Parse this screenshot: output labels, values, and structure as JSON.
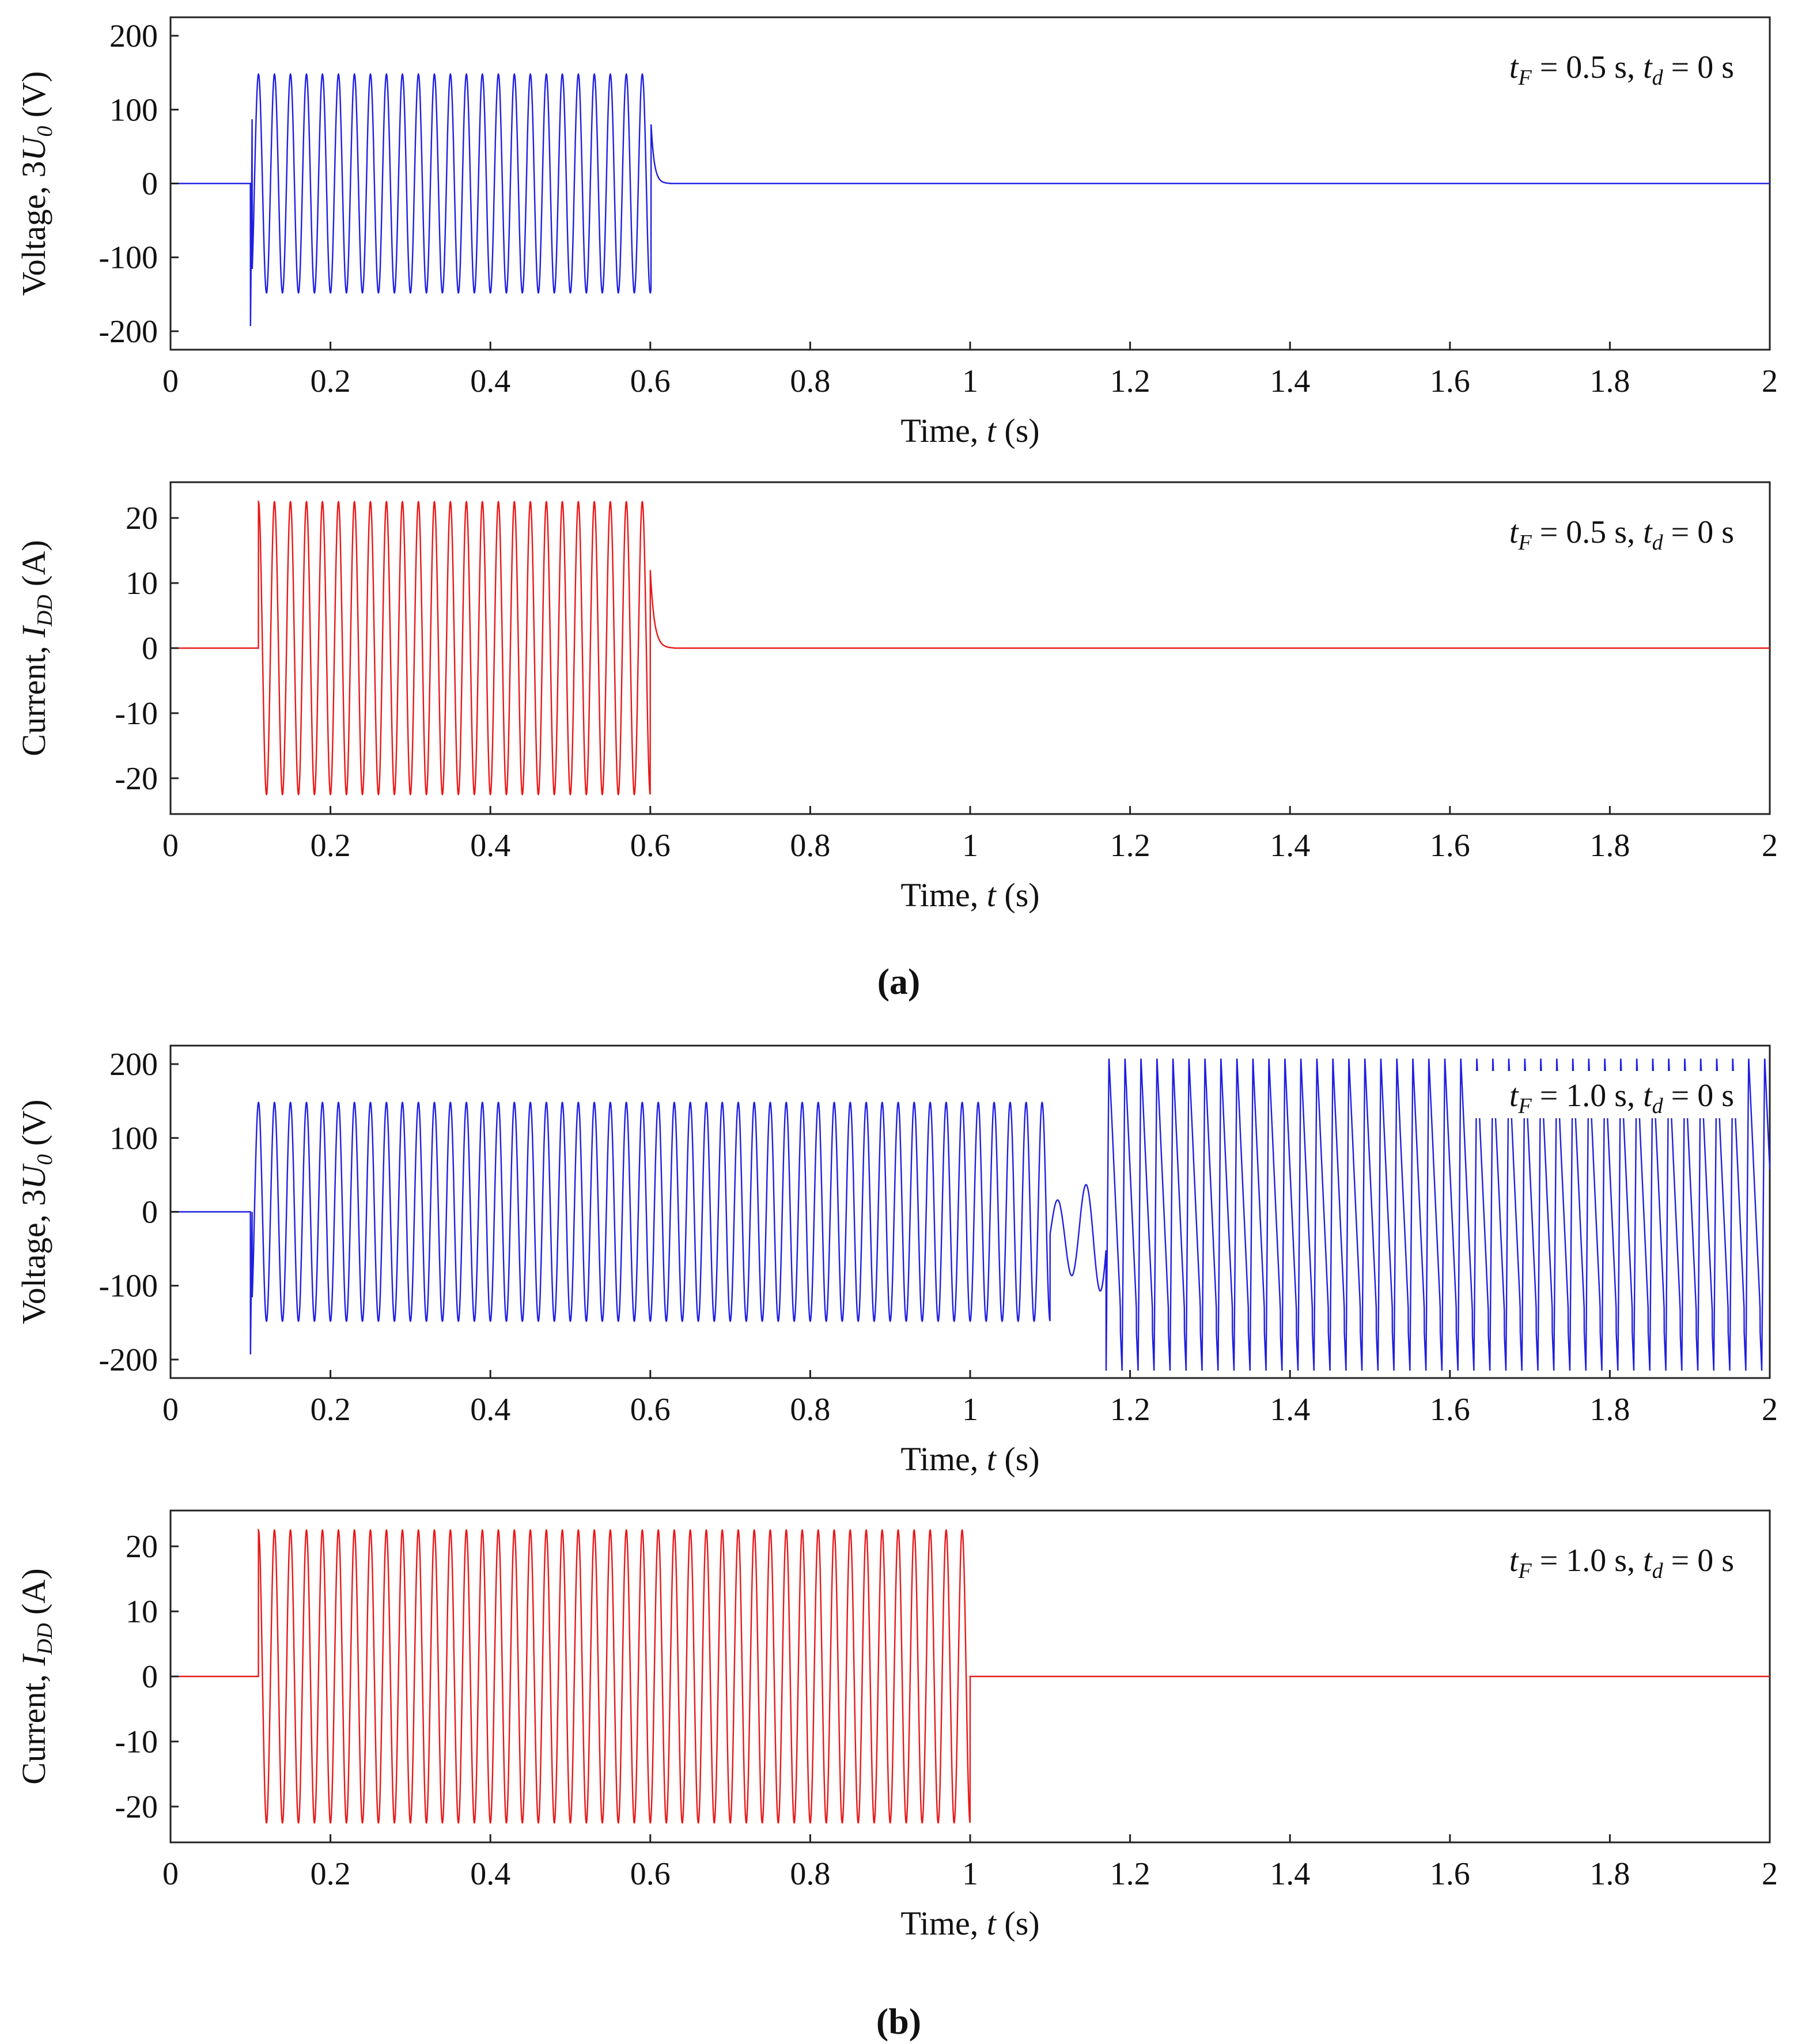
{
  "panel_labels": [
    "(a)",
    "(b)"
  ],
  "chart_data": [
    {
      "type": "line",
      "panel": "(a)",
      "color": "#1f1fe0",
      "ylabel": {
        "pre": "Voltage, 3",
        "sym": "U",
        "sub": "0",
        "post": " (V)"
      },
      "xlabel": {
        "pre": "Time, ",
        "sym": "t",
        "post": " (s)"
      },
      "xlim": [
        0,
        2
      ],
      "ylim": [
        -225,
        225
      ],
      "xticks": [
        0,
        0.2,
        0.4,
        0.6,
        0.8,
        1,
        1.2,
        1.4,
        1.6,
        1.8,
        2
      ],
      "xtick_labels": [
        "0",
        "0.2",
        "0.4",
        "0.6",
        "0.8",
        "1",
        "1.2",
        "1.4",
        "1.6",
        "1.8",
        "2"
      ],
      "yticks": [
        200,
        100,
        0,
        -100,
        -200
      ],
      "ytick_labels": [
        "200",
        "100",
        "0",
        "-100",
        "-200"
      ],
      "annotation": {
        "tF": "0.5",
        "td": "0",
        "text": "t_F = 0.5 s, t_d = 0 s",
        "legend_box": false
      },
      "signal": {
        "model": "voltage_a",
        "fault_start": 0.1,
        "fault_end": 0.605,
        "frequency_hz": 50,
        "amplitude": 148,
        "inception_spike": -193,
        "decay_peak": 80,
        "legend_location": "top-right"
      }
    },
    {
      "type": "line",
      "panel": "(a)",
      "color": "#e81818",
      "ylabel": {
        "pre": "Current, ",
        "sym": "I",
        "sub": "DD",
        "post": " (A)"
      },
      "xlabel": {
        "pre": "Time, ",
        "sym": "t",
        "post": " (s)"
      },
      "xlim": [
        0,
        2
      ],
      "ylim": [
        -25.5,
        25.5
      ],
      "xticks": [
        0,
        0.2,
        0.4,
        0.6,
        0.8,
        1,
        1.2,
        1.4,
        1.6,
        1.8,
        2
      ],
      "xtick_labels": [
        "0",
        "0.2",
        "0.4",
        "0.6",
        "0.8",
        "1",
        "1.2",
        "1.4",
        "1.6",
        "1.8",
        "2"
      ],
      "yticks": [
        20,
        10,
        0,
        -10,
        -20
      ],
      "ytick_labels": [
        "20",
        "10",
        "0",
        "-10",
        "-20"
      ],
      "annotation": {
        "tF": "0.5",
        "td": "0",
        "text": "t_F = 0.5 s, t_d = 0 s",
        "legend_box": false
      },
      "signal": {
        "model": "current_a",
        "fault_start": 0.11,
        "fault_end": 0.6,
        "frequency_hz": 50,
        "amplitude": 22.5,
        "decay_peak": 12,
        "legend_location": "top-right"
      }
    },
    {
      "type": "line",
      "panel": "(b)",
      "color": "#1f1fe0",
      "ylabel": {
        "pre": "Voltage, 3",
        "sym": "U",
        "sub": "0",
        "post": " (V)"
      },
      "xlabel": {
        "pre": "Time, ",
        "sym": "t",
        "post": " (s)"
      },
      "xlim": [
        0,
        2
      ],
      "ylim": [
        -225,
        225
      ],
      "xticks": [
        0,
        0.2,
        0.4,
        0.6,
        0.8,
        1,
        1.2,
        1.4,
        1.6,
        1.8,
        2
      ],
      "xtick_labels": [
        "0",
        "0.2",
        "0.4",
        "0.6",
        "0.8",
        "1",
        "1.2",
        "1.4",
        "1.6",
        "1.8",
        "2"
      ],
      "yticks": [
        200,
        100,
        0,
        -100,
        -200
      ],
      "ytick_labels": [
        "200",
        "100",
        "0",
        "-100",
        "-200"
      ],
      "annotation": {
        "tF": "1.0",
        "td": "0",
        "text": "t_F = 1.0 s, t_d = 0 s",
        "legend_box": true
      },
      "signal": {
        "model": "voltage_b",
        "fault_start": 0.1,
        "fault_end": 1.1,
        "frequency_hz": 50,
        "amplitude": 148,
        "inception_spike": -193,
        "overvoltage_peak": 210,
        "overvoltage_trough": -215,
        "legend_location": "top-right"
      }
    },
    {
      "type": "line",
      "panel": "(b)",
      "color": "#e81818",
      "ylabel": {
        "pre": "Current, ",
        "sym": "I",
        "sub": "DD",
        "post": " (A)"
      },
      "xlabel": {
        "pre": "Time, ",
        "sym": "t",
        "post": " (s)"
      },
      "xlim": [
        0,
        2
      ],
      "ylim": [
        -25.5,
        25.5
      ],
      "xticks": [
        0,
        0.2,
        0.4,
        0.6,
        0.8,
        1,
        1.2,
        1.4,
        1.6,
        1.8,
        2
      ],
      "xtick_labels": [
        "0",
        "0.2",
        "0.4",
        "0.6",
        "0.8",
        "1",
        "1.2",
        "1.4",
        "1.6",
        "1.8",
        "2"
      ],
      "yticks": [
        20,
        10,
        0,
        -10,
        -20
      ],
      "ytick_labels": [
        "20",
        "10",
        "0",
        "-10",
        "-20"
      ],
      "annotation": {
        "tF": "1.0",
        "td": "0",
        "text": "t_F = 1.0 s, t_d = 0 s",
        "legend_box": false
      },
      "signal": {
        "model": "current_b",
        "fault_start": 0.11,
        "fault_end": 1.0,
        "frequency_hz": 50,
        "amplitude": 22.5,
        "legend_location": "top-right"
      }
    }
  ]
}
